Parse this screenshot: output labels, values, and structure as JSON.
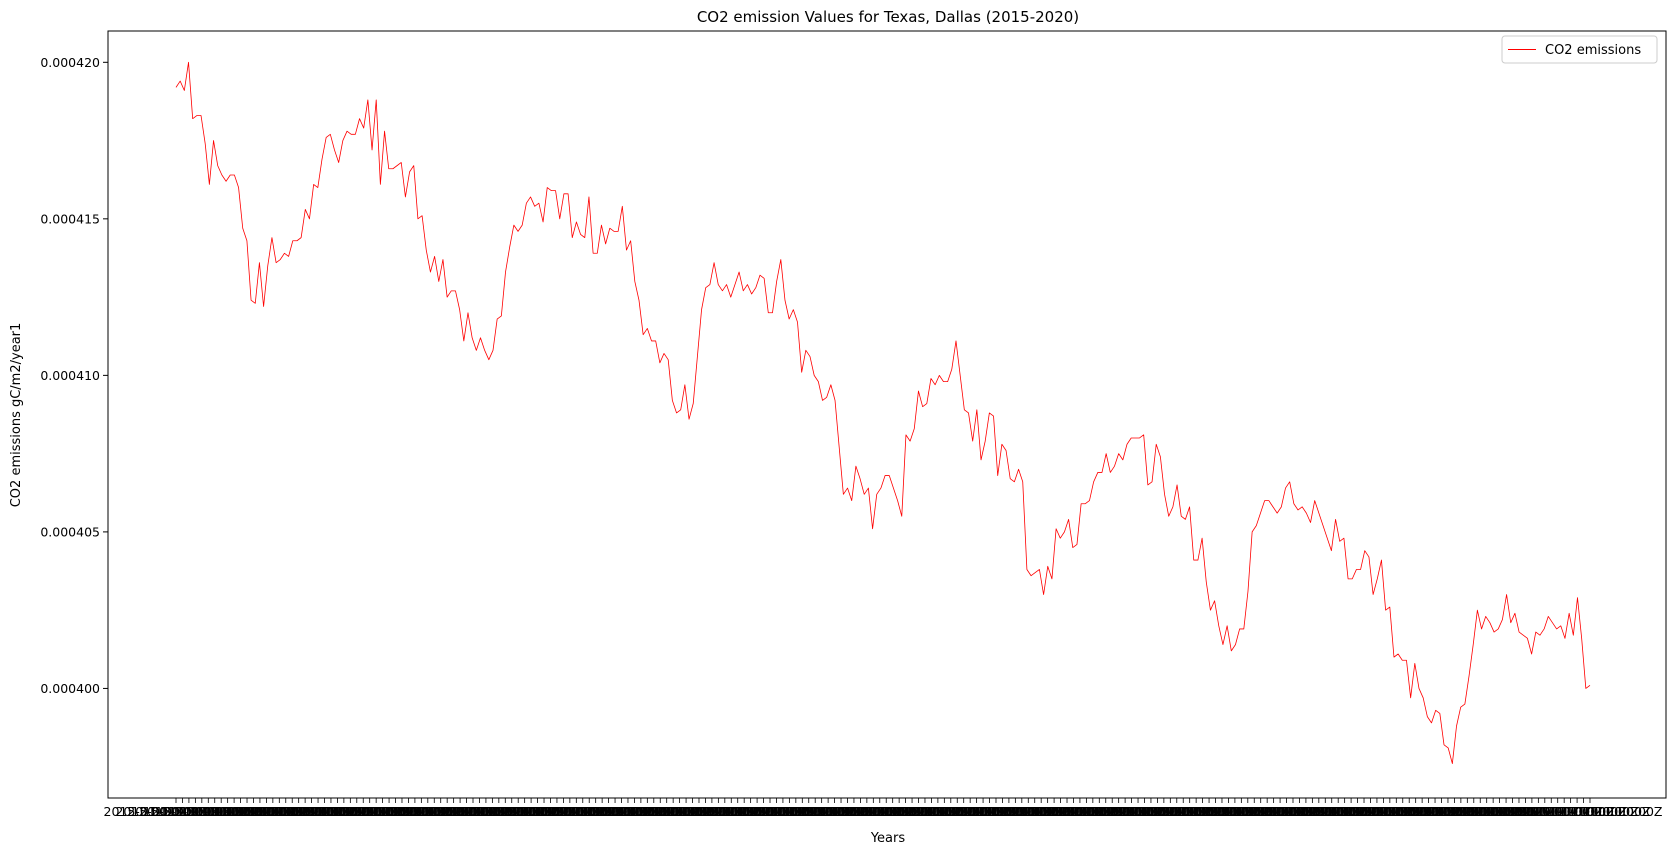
{
  "chart_data": {
    "type": "line",
    "title": "CO2 emission Values for Texas, Dallas (2015-2020)",
    "xlabel": "Years",
    "ylabel": "CO2 emissions gC/m2/year1",
    "ylim": [
      0.0003965,
      0.000421
    ],
    "yticks": [
      "0.000400",
      "0.000405",
      "0.000410",
      "0.000415",
      "0.000420"
    ],
    "ytick_values": [
      0.0004,
      0.000405,
      0.00041,
      0.000415,
      0.00042
    ],
    "x_tick_label": "2015-01-01T00:00:00Z",
    "grid": false,
    "legend_position": "top-right",
    "series": [
      {
        "name": "CO2 emissions",
        "color": "#ff0000",
        "values": [
          0.0004192,
          0.0004194,
          0.0004191,
          0.00042,
          0.0004182,
          0.0004183,
          0.0004183,
          0.0004174,
          0.0004161,
          0.0004175,
          0.0004167,
          0.0004164,
          0.0004162,
          0.0004164,
          0.0004164,
          0.000416,
          0.0004147,
          0.0004143,
          0.0004124,
          0.0004123,
          0.0004136,
          0.0004122,
          0.0004135,
          0.0004144,
          0.0004136,
          0.0004137,
          0.0004139,
          0.0004138,
          0.0004143,
          0.0004143,
          0.0004144,
          0.0004153,
          0.000415,
          0.0004161,
          0.000416,
          0.0004169,
          0.0004176,
          0.0004177,
          0.0004172,
          0.0004168,
          0.0004175,
          0.0004178,
          0.0004177,
          0.0004177,
          0.0004182,
          0.0004179,
          0.0004188,
          0.0004172,
          0.0004188,
          0.0004161,
          0.0004178,
          0.0004166,
          0.0004166,
          0.0004167,
          0.0004168,
          0.0004157,
          0.0004165,
          0.0004167,
          0.000415,
          0.0004151,
          0.000414,
          0.0004133,
          0.0004138,
          0.000413,
          0.0004137,
          0.0004125,
          0.0004127,
          0.0004127,
          0.0004121,
          0.0004111,
          0.000412,
          0.0004112,
          0.0004108,
          0.0004112,
          0.0004108,
          0.0004105,
          0.0004108,
          0.0004118,
          0.0004119,
          0.0004133,
          0.0004141,
          0.0004148,
          0.0004146,
          0.0004148,
          0.0004155,
          0.0004157,
          0.0004154,
          0.0004155,
          0.0004149,
          0.000416,
          0.0004159,
          0.0004159,
          0.000415,
          0.0004158,
          0.0004158,
          0.0004144,
          0.0004149,
          0.0004145,
          0.0004144,
          0.0004157,
          0.0004139,
          0.0004139,
          0.0004148,
          0.0004142,
          0.0004147,
          0.0004146,
          0.0004146,
          0.0004154,
          0.000414,
          0.0004143,
          0.000413,
          0.0004124,
          0.0004113,
          0.0004115,
          0.0004111,
          0.0004111,
          0.0004104,
          0.0004107,
          0.0004105,
          0.0004092,
          0.0004088,
          0.0004089,
          0.0004097,
          0.0004086,
          0.0004091,
          0.0004106,
          0.0004121,
          0.0004128,
          0.0004129,
          0.0004136,
          0.0004129,
          0.0004127,
          0.0004129,
          0.0004125,
          0.0004129,
          0.0004133,
          0.0004127,
          0.0004129,
          0.0004126,
          0.0004128,
          0.0004132,
          0.0004131,
          0.000412,
          0.000412,
          0.000413,
          0.0004137,
          0.0004124,
          0.0004118,
          0.0004121,
          0.0004117,
          0.0004101,
          0.0004108,
          0.0004106,
          0.00041,
          0.0004098,
          0.0004092,
          0.0004093,
          0.0004097,
          0.0004092,
          0.0004077,
          0.0004062,
          0.0004064,
          0.000406,
          0.0004071,
          0.0004067,
          0.0004062,
          0.0004064,
          0.0004051,
          0.0004062,
          0.0004064,
          0.0004068,
          0.0004068,
          0.0004064,
          0.000406,
          0.0004055,
          0.0004081,
          0.0004079,
          0.0004083,
          0.0004095,
          0.000409,
          0.0004091,
          0.0004099,
          0.0004097,
          0.00041,
          0.0004098,
          0.0004098,
          0.0004102,
          0.0004111,
          0.00041,
          0.0004089,
          0.0004088,
          0.0004079,
          0.0004089,
          0.0004073,
          0.0004079,
          0.0004088,
          0.0004087,
          0.0004068,
          0.0004078,
          0.0004076,
          0.0004067,
          0.0004066,
          0.000407,
          0.0004066,
          0.0004038,
          0.0004036,
          0.0004037,
          0.0004038,
          0.000403,
          0.0004039,
          0.0004035,
          0.0004051,
          0.0004048,
          0.000405,
          0.0004054,
          0.0004045,
          0.0004046,
          0.0004059,
          0.0004059,
          0.000406,
          0.0004066,
          0.0004069,
          0.0004069,
          0.0004075,
          0.0004069,
          0.0004071,
          0.0004075,
          0.0004073,
          0.0004078,
          0.000408,
          0.000408,
          0.000408,
          0.0004081,
          0.0004065,
          0.0004066,
          0.0004078,
          0.0004074,
          0.0004062,
          0.0004055,
          0.0004058,
          0.0004065,
          0.0004055,
          0.0004054,
          0.0004058,
          0.0004041,
          0.0004041,
          0.0004048,
          0.0004034,
          0.0004025,
          0.0004028,
          0.000402,
          0.0004014,
          0.000402,
          0.0004012,
          0.0004014,
          0.0004019,
          0.0004019,
          0.0004031,
          0.000405,
          0.0004052,
          0.0004056,
          0.000406,
          0.000406,
          0.0004058,
          0.0004056,
          0.0004058,
          0.0004064,
          0.0004066,
          0.0004059,
          0.0004057,
          0.0004058,
          0.0004056,
          0.0004053,
          0.000406,
          0.0004056,
          0.0004052,
          0.0004048,
          0.0004044,
          0.0004054,
          0.0004047,
          0.0004048,
          0.0004035,
          0.0004035,
          0.0004038,
          0.0004038,
          0.0004044,
          0.0004042,
          0.000403,
          0.0004035,
          0.0004041,
          0.0004025,
          0.0004026,
          0.000401,
          0.0004011,
          0.0004009,
          0.0004009,
          0.0003997,
          0.0004008,
          0.0004,
          0.0003997,
          0.0003991,
          0.0003989,
          0.0003993,
          0.0003992,
          0.0003982,
          0.0003981,
          0.0003976,
          0.0003988,
          0.0003994,
          0.0003995,
          0.0004004,
          0.0004014,
          0.0004025,
          0.0004019,
          0.0004023,
          0.0004021,
          0.0004018,
          0.0004019,
          0.0004022,
          0.000403,
          0.0004021,
          0.0004024,
          0.0004018,
          0.0004017,
          0.0004016,
          0.0004011,
          0.0004018,
          0.0004017,
          0.0004019,
          0.0004023,
          0.0004021,
          0.0004019,
          0.000402,
          0.0004016,
          0.0004024,
          0.0004017,
          0.0004029,
          0.0004016,
          0.0004,
          0.0004001
        ]
      }
    ]
  }
}
